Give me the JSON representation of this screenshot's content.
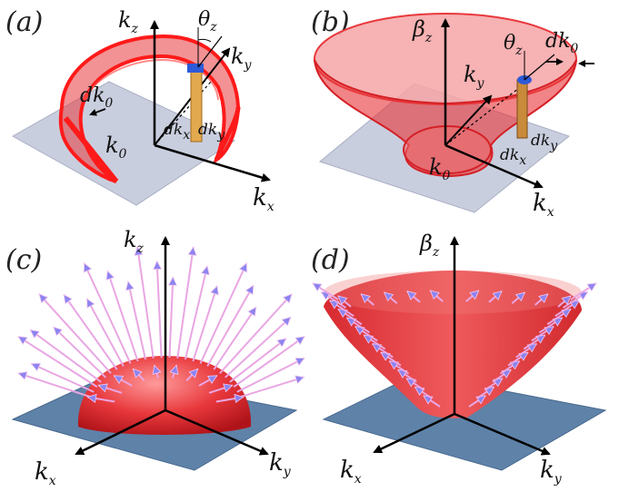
{
  "panels": [
    {
      "tag": "(a)",
      "labels": {
        "kz": "k",
        "kz_sub": "z",
        "ky": "k",
        "ky_sub": "y",
        "kx": "k",
        "kx_sub": "x",
        "theta": "θ",
        "theta_sub": "z",
        "dk0": "dk",
        "dk0_sub": "0",
        "k0": "k",
        "k0_sub": "0",
        "dkx": "dk",
        "dkx_sub": "x",
        "dky": "dk",
        "dky_sub": "y"
      }
    },
    {
      "tag": "(b)",
      "labels": {
        "beta": "β",
        "beta_sub": "z",
        "ky": "k",
        "ky_sub": "y",
        "kx": "k",
        "kx_sub": "x",
        "theta": "θ",
        "theta_sub": "z",
        "dk0": "dk",
        "dk0_sub": "0",
        "k0": "k",
        "k0_sub": "0",
        "dkx": "dk",
        "dkx_sub": "x",
        "dky": "dk",
        "dky_sub": "y"
      }
    },
    {
      "tag": "(c)",
      "labels": {
        "kz": "k",
        "kz_sub": "z",
        "ky": "k",
        "ky_sub": "y",
        "kx": "k",
        "kx_sub": "x"
      }
    },
    {
      "tag": "(d)",
      "labels": {
        "beta": "β",
        "beta_sub": "z",
        "ky": "k",
        "ky_sub": "y",
        "kx": "k",
        "kx_sub": "x"
      }
    }
  ],
  "colors": {
    "surface_red": "#e8383c",
    "surface_light": "#f6a4a6",
    "plane_light": "#c9cede",
    "plane_dark": "#5f82a8",
    "arrow_pink": "#e9a6e3",
    "arrow_blue": "#7d7df0",
    "bar": "#e2a94e"
  }
}
